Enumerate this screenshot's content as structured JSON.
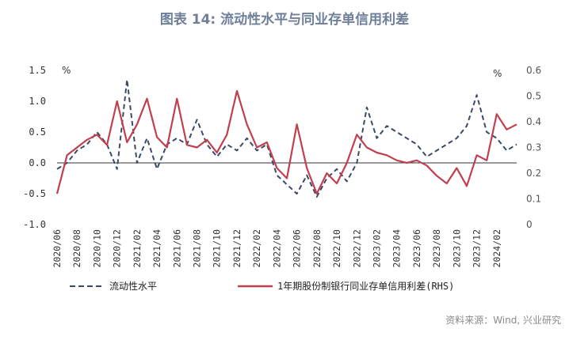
{
  "title": "图表 14: 流动性水平与同业存单信用利差",
  "source": "资料来源：Wind, 兴业研究",
  "colors": {
    "liquidity": "#3b4a66",
    "spread": "#c0404f",
    "zero_line": "#333333"
  },
  "chart_data": {
    "type": "line",
    "title": "图表 14: 流动性水平与同业存单信用利差",
    "x_tick_labels": [
      "2020/06",
      "2020/08",
      "2020/10",
      "2020/12",
      "2021/02",
      "2021/04",
      "2021/06",
      "2021/08",
      "2021/10",
      "2021/12",
      "2022/02",
      "2022/04",
      "2022/06",
      "2022/08",
      "2022/10",
      "2022/12",
      "2023/02",
      "2023/04",
      "2023/06",
      "2023/08",
      "2023/10",
      "2023/12",
      "2024/02"
    ],
    "x_range": [
      "2020/06",
      "2024/04"
    ],
    "left_axis": {
      "unit": "%",
      "ylim": [
        -1.0,
        1.5
      ],
      "ticks": [
        "-1.0",
        "-0.5",
        "0.0",
        "0.5",
        "1.0",
        "1.5"
      ]
    },
    "right_axis": {
      "unit": "%",
      "ylim": [
        0,
        0.6
      ],
      "ticks": [
        "0",
        "0.1",
        "0.2",
        "0.3",
        "0.4",
        "0.5",
        "0.6"
      ]
    },
    "legend_position": "bottom",
    "series": [
      {
        "name": "流动性水平",
        "axis": "left",
        "style": "dashed",
        "x": [
          "2020/06",
          "2020/07",
          "2020/08",
          "2020/09",
          "2020/10",
          "2020/11",
          "2020/12",
          "2021/01",
          "2021/02",
          "2021/03",
          "2021/04",
          "2021/05",
          "2021/06",
          "2021/07",
          "2021/08",
          "2021/09",
          "2021/10",
          "2021/11",
          "2021/12",
          "2022/01",
          "2022/02",
          "2022/03",
          "2022/04",
          "2022/05",
          "2022/06",
          "2022/07",
          "2022/08",
          "2022/09",
          "2022/10",
          "2022/11",
          "2022/12",
          "2023/01",
          "2023/02",
          "2023/03",
          "2023/04",
          "2023/05",
          "2023/06",
          "2023/07",
          "2023/08",
          "2023/09",
          "2023/10",
          "2023/11",
          "2023/12",
          "2024/01",
          "2024/02",
          "2024/03",
          "2024/04"
        ],
        "values": [
          -0.1,
          0.0,
          0.2,
          0.3,
          0.5,
          0.3,
          -0.1,
          1.35,
          0.0,
          0.4,
          -0.1,
          0.3,
          0.4,
          0.3,
          0.7,
          0.3,
          0.1,
          0.3,
          0.2,
          0.4,
          0.2,
          0.3,
          -0.2,
          -0.35,
          -0.5,
          -0.2,
          -0.55,
          -0.25,
          -0.1,
          -0.3,
          0.0,
          0.9,
          0.4,
          0.6,
          0.5,
          0.4,
          0.3,
          0.1,
          0.2,
          0.3,
          0.4,
          0.6,
          1.1,
          0.5,
          0.4,
          0.2,
          0.3
        ]
      },
      {
        "name": "1年期股份制银行同业存单信用利差(RHS)",
        "axis": "right",
        "style": "solid",
        "x": [
          "2020/06",
          "2020/07",
          "2020/08",
          "2020/09",
          "2020/10",
          "2020/11",
          "2020/12",
          "2021/01",
          "2021/02",
          "2021/03",
          "2021/04",
          "2021/05",
          "2021/06",
          "2021/07",
          "2021/08",
          "2021/09",
          "2021/10",
          "2021/11",
          "2021/12",
          "2022/01",
          "2022/02",
          "2022/03",
          "2022/04",
          "2022/05",
          "2022/06",
          "2022/07",
          "2022/08",
          "2022/09",
          "2022/10",
          "2022/11",
          "2022/12",
          "2023/01",
          "2023/02",
          "2023/03",
          "2023/04",
          "2023/05",
          "2023/06",
          "2023/07",
          "2023/08",
          "2023/09",
          "2023/10",
          "2023/11",
          "2023/12",
          "2024/01",
          "2024/02",
          "2024/03",
          "2024/04"
        ],
        "values": [
          0.12,
          0.27,
          0.3,
          0.33,
          0.35,
          0.31,
          0.48,
          0.32,
          0.39,
          0.49,
          0.34,
          0.3,
          0.49,
          0.31,
          0.3,
          0.33,
          0.28,
          0.35,
          0.52,
          0.39,
          0.3,
          0.32,
          0.22,
          0.18,
          0.39,
          0.22,
          0.12,
          0.2,
          0.16,
          0.24,
          0.35,
          0.3,
          0.28,
          0.27,
          0.25,
          0.24,
          0.25,
          0.23,
          0.19,
          0.16,
          0.22,
          0.15,
          0.27,
          0.25,
          0.43,
          0.37,
          0.39
        ]
      }
    ]
  }
}
